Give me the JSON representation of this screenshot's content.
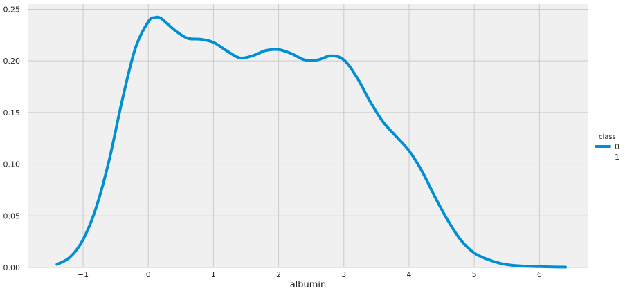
{
  "chart_data": {
    "type": "line",
    "xlabel": "albumin",
    "ylabel": "",
    "title": "",
    "xlim": [
      -1.85,
      6.75
    ],
    "ylim": [
      0,
      0.255
    ],
    "xticks": [
      -1,
      0,
      1,
      2,
      3,
      4,
      5,
      6
    ],
    "xtick_labels": [
      "−1",
      "0",
      "1",
      "2",
      "3",
      "4",
      "5",
      "6"
    ],
    "yticks": [
      0.0,
      0.05,
      0.1,
      0.15,
      0.2,
      0.25
    ],
    "ytick_labels": [
      "0.00",
      "0.05",
      "0.10",
      "0.15",
      "0.20",
      "0.25"
    ],
    "grid": true,
    "background_color": "#f0f0f0",
    "grid_color": "#cbcbcb",
    "legend": {
      "title": "class",
      "placement": "right",
      "entries": [
        {
          "label": "0",
          "color": "#008fd5"
        },
        {
          "label": "1",
          "color": ""
        }
      ]
    },
    "series": [
      {
        "name": "0",
        "color": "#008fd5",
        "x": [
          -1.4,
          -1.2,
          -1.0,
          -0.8,
          -0.6,
          -0.4,
          -0.2,
          0.0,
          0.1,
          0.2,
          0.4,
          0.6,
          0.8,
          1.0,
          1.2,
          1.4,
          1.6,
          1.8,
          2.0,
          2.2,
          2.4,
          2.6,
          2.8,
          3.0,
          3.2,
          3.4,
          3.6,
          3.8,
          4.0,
          4.2,
          4.4,
          4.6,
          4.8,
          5.0,
          5.2,
          5.4,
          5.6,
          5.8,
          6.0,
          6.2,
          6.4
        ],
        "y": [
          0.003,
          0.01,
          0.027,
          0.058,
          0.104,
          0.162,
          0.212,
          0.238,
          0.242,
          0.241,
          0.23,
          0.222,
          0.221,
          0.218,
          0.21,
          0.203,
          0.205,
          0.21,
          0.211,
          0.207,
          0.201,
          0.201,
          0.205,
          0.201,
          0.184,
          0.161,
          0.141,
          0.127,
          0.113,
          0.093,
          0.068,
          0.045,
          0.026,
          0.014,
          0.008,
          0.004,
          0.002,
          0.0012,
          0.0008,
          0.0005,
          0.0003
        ]
      }
    ]
  }
}
